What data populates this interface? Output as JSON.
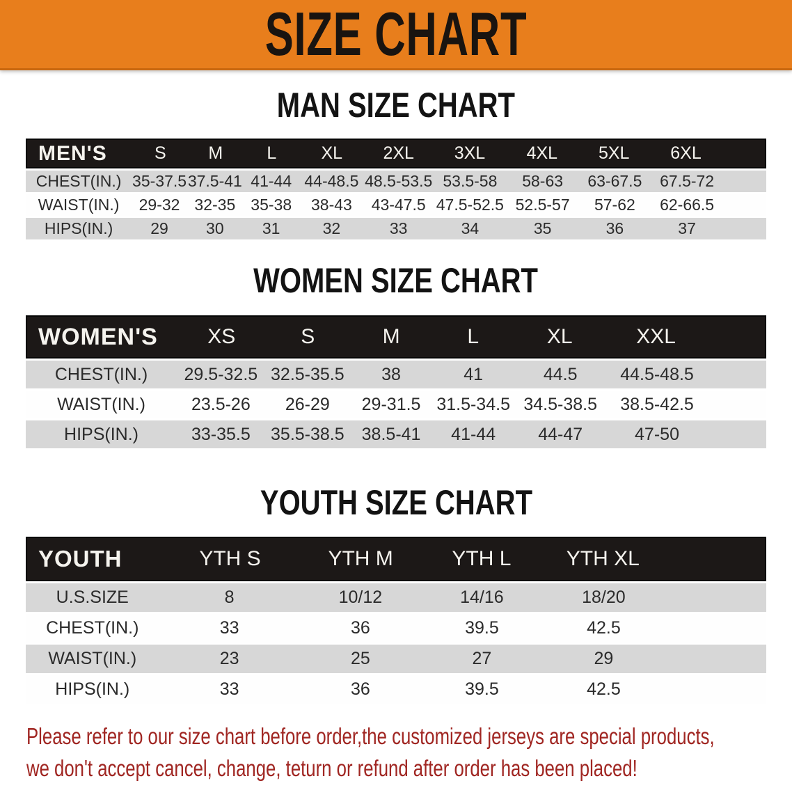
{
  "banner": {
    "title": "SIZE CHART"
  },
  "colors": {
    "banner_bg": "#e87e1c",
    "banner_text": "#191410",
    "header_bg": "#1c1817",
    "row_gray": "#d7d7d7",
    "disclaimer_red": "#a02622"
  },
  "sections": [
    {
      "heading": "MAN SIZE CHART",
      "header_label": "MEN'S",
      "columns": [
        "S",
        "M",
        "L",
        "XL",
        "2XL",
        "3XL",
        "4XL",
        "5XL",
        "6XL"
      ],
      "rows": [
        {
          "label": "CHEST(IN.)",
          "values": [
            "35-37.5",
            "37.5-41",
            "41-44",
            "44-48.5",
            "48.5-53.5",
            "53.5-58",
            "58-63",
            "63-67.5",
            "67.5-72"
          ]
        },
        {
          "label": "WAIST(IN.)",
          "values": [
            "29-32",
            "32-35",
            "35-38",
            "38-43",
            "43-47.5",
            "47.5-52.5",
            "52.5-57",
            "57-62",
            "62-66.5"
          ]
        },
        {
          "label": "HIPS(IN.)",
          "values": [
            "29",
            "30",
            "31",
            "32",
            "33",
            "34",
            "35",
            "36",
            "37"
          ]
        }
      ]
    },
    {
      "heading": "WOMEN SIZE CHART",
      "header_label": "WOMEN'S",
      "columns": [
        "XS",
        "S",
        "M",
        "L",
        "XL",
        "XXL"
      ],
      "rows": [
        {
          "label": "CHEST(IN.)",
          "values": [
            "29.5-32.5",
            "32.5-35.5",
            "38",
            "41",
            "44.5",
            "44.5-48.5"
          ]
        },
        {
          "label": "WAIST(IN.)",
          "values": [
            "23.5-26",
            "26-29",
            "29-31.5",
            "31.5-34.5",
            "34.5-38.5",
            "38.5-42.5"
          ]
        },
        {
          "label": "HIPS(IN.)",
          "values": [
            "33-35.5",
            "35.5-38.5",
            "38.5-41",
            "41-44",
            "44-47",
            "47-50"
          ]
        }
      ]
    },
    {
      "heading": "YOUTH SIZE CHART",
      "header_label": "YOUTH",
      "columns": [
        "YTH S",
        "YTH M",
        "YTH L",
        "YTH XL"
      ],
      "rows": [
        {
          "label": "U.S.SIZE",
          "values": [
            "8",
            "10/12",
            "14/16",
            "18/20"
          ]
        },
        {
          "label": "CHEST(IN.)",
          "values": [
            "33",
            "36",
            "39.5",
            "42.5"
          ]
        },
        {
          "label": "WAIST(IN.)",
          "values": [
            "23",
            "25",
            "27",
            "29"
          ]
        },
        {
          "label": "HIPS(IN.)",
          "values": [
            "33",
            "36",
            "39.5",
            "42.5"
          ]
        }
      ]
    }
  ],
  "disclaimer": {
    "line1": "Please refer to our size chart before order,the customized jerseys are special products,",
    "line2": "we don't accept cancel, change, teturn or refund after order has been placed!"
  }
}
